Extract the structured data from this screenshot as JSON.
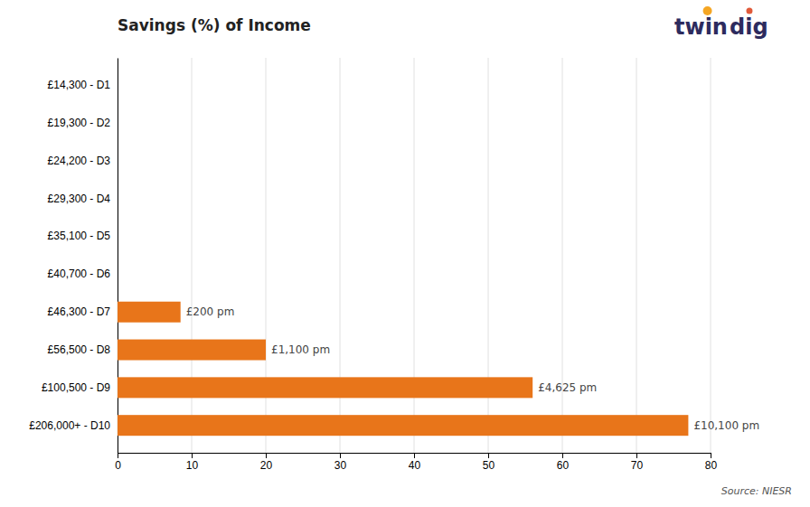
{
  "chart_data": {
    "type": "bar",
    "orientation": "horizontal",
    "title": "Savings (%) of Income",
    "categories": [
      "£14,300 - D1",
      "£19,300 - D2",
      "£24,200 - D3",
      "£29,300 - D4",
      "£35,100 - D5",
      "£40,700 - D6",
      "£46,300 - D7",
      "£56,500 - D8",
      "£100,500 - D9",
      "£206,000+ - D10"
    ],
    "values": [
      0,
      0,
      0,
      0,
      0,
      0,
      8.5,
      20.0,
      56.0,
      77.0
    ],
    "annotations": [
      null,
      null,
      null,
      null,
      null,
      null,
      "£200 pm",
      "£1,100 pm",
      "£4,625 pm",
      "£10,100 pm"
    ],
    "color": "#E8751A",
    "xlim": [
      0,
      80
    ],
    "xticks": [
      0,
      10,
      20,
      30,
      40,
      50,
      60,
      70,
      80
    ],
    "grid": true,
    "source": "Source: NIESR",
    "logo": [
      "twin",
      "dig"
    ]
  }
}
